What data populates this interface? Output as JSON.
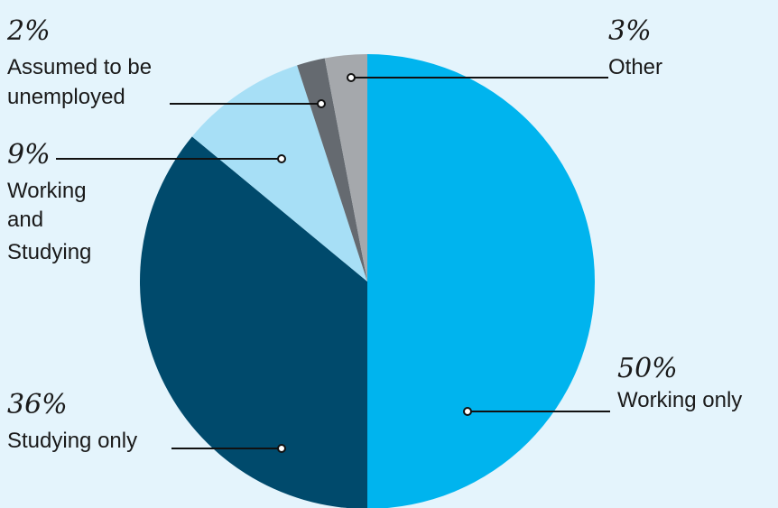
{
  "chart_data": {
    "type": "pie",
    "title": "",
    "start": "top",
    "direction": "clockwise",
    "slices": [
      {
        "key": "working_only",
        "value": 50,
        "percent_label": "50%",
        "label_lines": [
          "Working only"
        ],
        "color": "#00b4ee"
      },
      {
        "key": "studying_only",
        "value": 36,
        "percent_label": "36%",
        "label_lines": [
          "Studying only"
        ],
        "color": "#004a6c"
      },
      {
        "key": "working_and_studying",
        "value": 9,
        "percent_label": "9%",
        "label_lines": [
          "Working",
          "and",
          "Studying"
        ],
        "color": "#a7dff6"
      },
      {
        "key": "assumed_unemployed",
        "value": 2,
        "percent_label": "2%",
        "label_lines": [
          "Assumed to be",
          "unemployed"
        ],
        "color": "#656a70"
      },
      {
        "key": "other",
        "value": 3,
        "percent_label": "3%",
        "label_lines": [
          "Other"
        ],
        "color": "#a5a8ac"
      }
    ]
  }
}
